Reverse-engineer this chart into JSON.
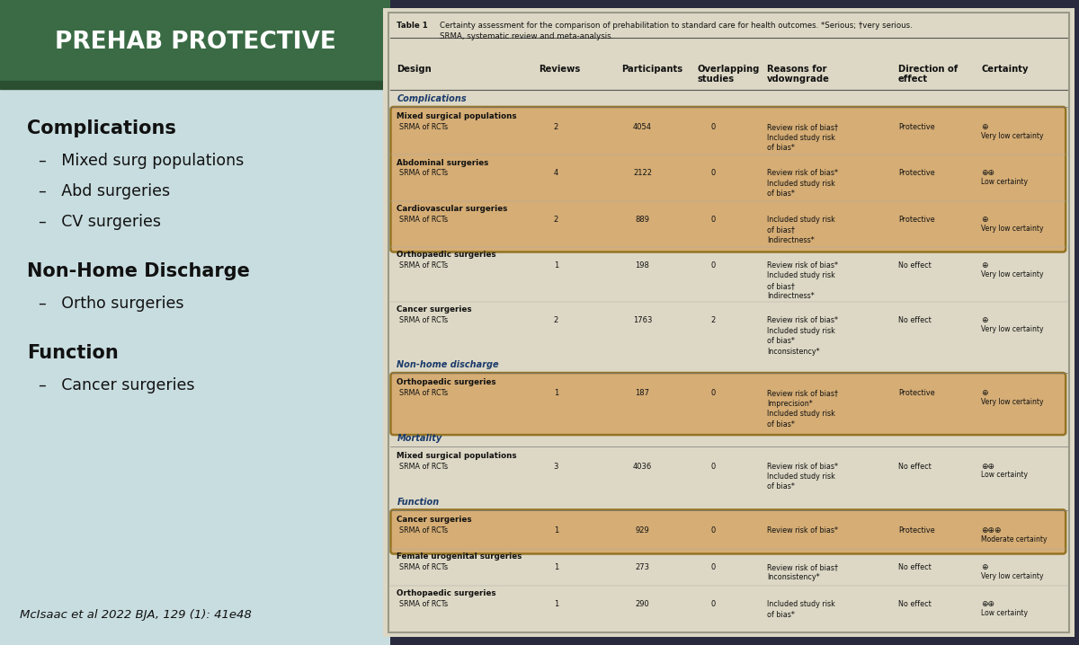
{
  "left_bg_color": "#c8dde0",
  "left_title": "PREHAB PROTECTIVE",
  "left_title_bg": "#3a6b45",
  "left_sections": [
    {
      "heading": "Complications",
      "items": [
        "Mixed surg populations",
        "Abd surgeries",
        "CV surgeries"
      ]
    },
    {
      "heading": "Non-Home Discharge",
      "items": [
        "Ortho surgeries"
      ]
    },
    {
      "heading": "Function",
      "items": [
        "Cancer surgeries"
      ]
    }
  ],
  "citation": "McIsaac et al 2022 BJA, 129 (1): 41e48",
  "table_title_bold": "Table 1 ",
  "table_title_rest": "Certainty assessment for the comparison of prehabilitation to standard care for health outcomes. *Serious; †very serious.\nSRMA, systematic review and meta-analysis.",
  "col_headers": [
    "Design",
    "Reviews",
    "Participants",
    "Overlapping\nstudies",
    "Reasons for\nvdowngrade",
    "Direction of\neffect",
    "Certainty"
  ],
  "rows": [
    {
      "section": "Complications",
      "surgery": "Mixed surgical populations",
      "design": "SRMA of RCTs",
      "reviews": "2",
      "participants": "4054",
      "overlapping": "0",
      "reasons": "Review risk of bias†\nIncluded study risk\nof bias*",
      "direction": "Protective",
      "certainty_symbol": "⊕",
      "certainty_text": "Very low certainty",
      "highlight": true
    },
    {
      "section": "Complications",
      "surgery": "Abdominal surgeries",
      "design": "SRMA of RCTs",
      "reviews": "4",
      "participants": "2122",
      "overlapping": "0",
      "reasons": "Review risk of bias*\nIncluded study risk\nof bias*",
      "direction": "Protective",
      "certainty_symbol": "⊕⊕",
      "certainty_text": "Low certainty",
      "highlight": true
    },
    {
      "section": "Complications",
      "surgery": "Cardiovascular surgeries",
      "design": "SRMA of RCTs",
      "reviews": "2",
      "participants": "889",
      "overlapping": "0",
      "reasons": "Included study risk\nof bias†\nIndirectness*",
      "direction": "Protective",
      "certainty_symbol": "⊕",
      "certainty_text": "Very low certainty",
      "highlight": true
    },
    {
      "section": "Complications",
      "surgery": "Orthopaedic surgeries",
      "design": "SRMA of RCTs",
      "reviews": "1",
      "participants": "198",
      "overlapping": "0",
      "reasons": "Review risk of bias*\nIncluded study risk\nof bias†\nIndirectness*",
      "direction": "No effect",
      "certainty_symbol": "⊕",
      "certainty_text": "Very low certainty",
      "highlight": false
    },
    {
      "section": "Complications",
      "surgery": "Cancer surgeries",
      "design": "SRMA of RCTs",
      "reviews": "2",
      "participants": "1763",
      "overlapping": "2",
      "reasons": "Review risk of bias*\nIncluded study risk\nof bias*\nInconsistency*",
      "direction": "No effect",
      "certainty_symbol": "⊕",
      "certainty_text": "Very low certainty",
      "highlight": false
    },
    {
      "section": "Non-home discharge",
      "surgery": "Orthopaedic surgeries",
      "design": "SRMA of RCTs",
      "reviews": "1",
      "participants": "187",
      "overlapping": "0",
      "reasons": "Review risk of bias†\nImprecision*\nIncluded study risk\nof bias*",
      "direction": "Protective",
      "certainty_symbol": "⊕",
      "certainty_text": "Very low certainty",
      "highlight": true
    },
    {
      "section": "Mortality",
      "surgery": "Mixed surgical populations",
      "design": "SRMA of RCTs",
      "reviews": "3",
      "participants": "4036",
      "overlapping": "0",
      "reasons": "Review risk of bias*\nIncluded study risk\nof bias*",
      "direction": "No effect",
      "certainty_symbol": "⊕⊕",
      "certainty_text": "Low certainty",
      "highlight": false
    },
    {
      "section": "Function",
      "surgery": "Cancer surgeries",
      "design": "SRMA of RCTs",
      "reviews": "1",
      "participants": "929",
      "overlapping": "0",
      "reasons": "Review risk of bias*",
      "direction": "Protective",
      "certainty_symbol": "⊕⊕⊕",
      "certainty_text": "Moderate certainty",
      "highlight": true
    },
    {
      "section": "Function",
      "surgery": "Female urogenital surgeries",
      "design": "SRMA of RCTs",
      "reviews": "1",
      "participants": "273",
      "overlapping": "0",
      "reasons": "Review risk of bias†\nInconsistency*",
      "direction": "No effect",
      "certainty_symbol": "⊕",
      "certainty_text": "Very low certainty",
      "highlight": false
    },
    {
      "section": "Function",
      "surgery": "Orthopaedic surgeries",
      "design": "SRMA of RCTs",
      "reviews": "1",
      "participants": "290",
      "overlapping": "0",
      "reasons": "Included study risk\nof bias*",
      "direction": "No effect",
      "certainty_symbol": "⊕⊕",
      "certainty_text": "Low certainty",
      "highlight": false
    }
  ],
  "highlight_color": "#d4a76a",
  "highlight_border": "#8B6914"
}
